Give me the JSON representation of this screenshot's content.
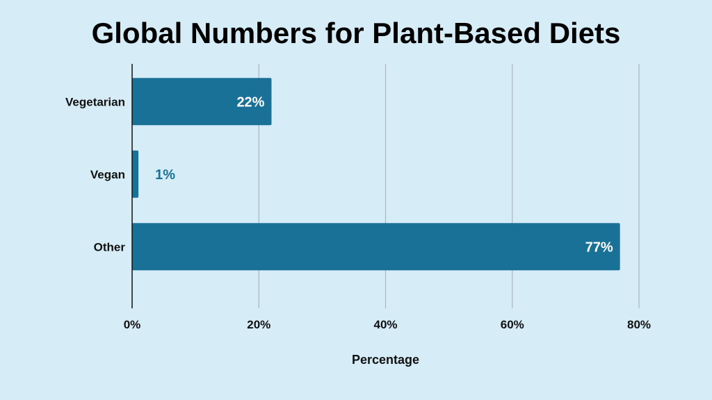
{
  "chart_data": {
    "type": "bar",
    "orientation": "horizontal",
    "title": "Global Numbers for Plant-Based Diets",
    "xlabel": "Percentage",
    "ylabel": "",
    "categories": [
      "Vegetarian",
      "Vegan",
      "Other"
    ],
    "values": [
      22,
      1,
      77
    ],
    "data_labels": [
      "22%",
      "1%",
      "77%"
    ],
    "xlim": [
      0,
      80
    ],
    "x_ticks": [
      0,
      20,
      40,
      60,
      80
    ],
    "x_tick_labels": [
      "0%",
      "20%",
      "40%",
      "60%",
      "80%"
    ],
    "grid": "vertical",
    "legend": "none"
  },
  "colors": {
    "background": "#d6ecf6",
    "bar": "#1a7198",
    "bar_label_inside": "#ffffff",
    "bar_label_outside": "#1a7198",
    "gridline": "#a9b7bf",
    "axis": "#111111",
    "text": "#111111"
  }
}
